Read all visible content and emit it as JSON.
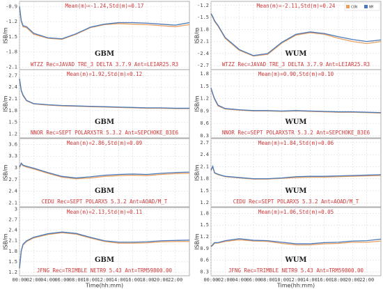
{
  "chart_data": [
    {
      "type": "line",
      "ylabel": "ISB/m",
      "annotation": "Mean(m)=-1.24,Std(m)=0.17",
      "station": "WTZZ Rec=JAVAD TRE_3 DELTA 3.7.9 Ant=LEIAR25.R3",
      "method": "GBM",
      "x": [
        0,
        0.25,
        0.5,
        1,
        2,
        4,
        6,
        8,
        10,
        12,
        14,
        16,
        18,
        20,
        22,
        24
      ],
      "xlim": [
        0,
        24
      ],
      "ylim": [
        -2.15,
        -0.8
      ],
      "yticks": [
        -2.1,
        -1.8,
        -1.5,
        -1.2,
        -0.9
      ],
      "series": [
        {
          "color": "#e8a060",
          "values": [
            -0.92,
            -1.2,
            -1.3,
            -1.32,
            -1.45,
            -1.53,
            -1.55,
            -1.45,
            -1.32,
            -1.26,
            -1.24,
            -1.25,
            -1.26,
            -1.28,
            -1.3,
            -1.26
          ]
        },
        {
          "color": "#4a78b8",
          "values": [
            -0.9,
            -1.18,
            -1.28,
            -1.3,
            -1.43,
            -1.52,
            -1.54,
            -1.44,
            -1.31,
            -1.25,
            -1.22,
            -1.22,
            -1.23,
            -1.25,
            -1.27,
            -1.22
          ]
        }
      ]
    },
    {
      "type": "line",
      "ylabel": "ISB/m",
      "annotation": "Mean(m)=-2.11,Std(m)=0.24",
      "station": "WTZZ Rec=JAVAD TRE_3 DELTA 3.7.9 Ant=LEIAR25.R3",
      "method": "WUM",
      "x": [
        0,
        0.25,
        0.5,
        1,
        2,
        4,
        6,
        8,
        10,
        12,
        14,
        16,
        18,
        20,
        22,
        24
      ],
      "xlim": [
        0,
        24
      ],
      "ylim": [
        -2.8,
        -1.1
      ],
      "yticks": [
        -2.7,
        -2.4,
        -2.1,
        -1.8,
        -1.5,
        -1.2
      ],
      "series": [
        {
          "name": "CON",
          "color": "#e8a060",
          "values": [
            -1.42,
            -1.5,
            -1.6,
            -1.72,
            -2.02,
            -2.32,
            -2.46,
            -2.42,
            -2.14,
            -1.94,
            -1.88,
            -1.92,
            -2.02,
            -2.1,
            -2.15,
            -2.1
          ]
        },
        {
          "name": "NM",
          "color": "#4a78b8",
          "values": [
            -1.4,
            -1.48,
            -1.58,
            -1.7,
            -2.0,
            -2.3,
            -2.45,
            -2.4,
            -2.12,
            -1.92,
            -1.86,
            -1.9,
            -1.98,
            -2.05,
            -2.1,
            -2.06
          ]
        }
      ]
    },
    {
      "type": "line",
      "ylabel": "ISB/m",
      "annotation": "Mean(m)=1.92,Std(m)=0.12",
      "station": "NNOR Rec=SEPT POLARX5TR 5.3.2 Ant=SEPCHOKE_B3E6",
      "method": "GBM",
      "x": [
        0,
        0.25,
        0.5,
        1,
        2,
        4,
        6,
        8,
        10,
        12,
        14,
        16,
        18,
        20,
        22,
        24
      ],
      "xlim": [
        0,
        24
      ],
      "ylim": [
        1.1,
        2.85
      ],
      "yticks": [
        1.2,
        1.5,
        1.8,
        2.1,
        2.4,
        2.7
      ],
      "series": [
        {
          "color": "#e8a060",
          "values": [
            2.6,
            2.3,
            2.18,
            2.05,
            1.97,
            1.94,
            1.92,
            1.91,
            1.9,
            1.89,
            1.88,
            1.87,
            1.86,
            1.86,
            1.85,
            1.85
          ]
        },
        {
          "color": "#4a78b8",
          "values": [
            2.62,
            2.32,
            2.2,
            2.06,
            1.98,
            1.95,
            1.93,
            1.92,
            1.91,
            1.9,
            1.89,
            1.88,
            1.87,
            1.87,
            1.86,
            1.86
          ]
        }
      ]
    },
    {
      "type": "line",
      "ylabel": "ISB/m",
      "annotation": "Mean(m)=0.90,Std(m)=0.10",
      "station": "NNOR Rec=SEPT POLARX5TR 5.3.2 Ant=SEPCHOKE_B3E6",
      "method": "WUM",
      "x": [
        0,
        0.25,
        0.5,
        1,
        2,
        4,
        6,
        8,
        10,
        12,
        14,
        16,
        18,
        20,
        22,
        24
      ],
      "xlim": [
        0,
        24
      ],
      "ylim": [
        0.25,
        1.9
      ],
      "yticks": [
        0.3,
        0.6,
        0.9,
        1.2,
        1.5,
        1.8
      ],
      "series": [
        {
          "color": "#e8a060",
          "values": [
            1.45,
            1.3,
            1.18,
            1.02,
            0.95,
            0.92,
            0.9,
            0.9,
            0.89,
            0.9,
            0.89,
            0.88,
            0.87,
            0.87,
            0.86,
            0.85
          ]
        },
        {
          "color": "#4a78b8",
          "values": [
            1.46,
            1.32,
            1.2,
            1.04,
            0.96,
            0.93,
            0.91,
            0.91,
            0.9,
            0.91,
            0.9,
            0.89,
            0.88,
            0.88,
            0.87,
            0.86
          ]
        }
      ]
    },
    {
      "type": "line",
      "ylabel": "ISB/m",
      "annotation": "Mean(m)=2.86,Std(m)=0.09",
      "station": "CEDU Rec=SEPT POLARX5 5.3.2 Ant=AOAD/M_T",
      "method": "GBM",
      "x": [
        0,
        0.25,
        0.5,
        1,
        2,
        4,
        6,
        8,
        10,
        12,
        14,
        16,
        18,
        20,
        22,
        24
      ],
      "xlim": [
        0,
        24
      ],
      "ylim": [
        2.0,
        3.75
      ],
      "yticks": [
        2.1,
        2.4,
        2.7,
        3.0,
        3.3,
        3.6
      ],
      "series": [
        {
          "color": "#e8a060",
          "values": [
            3.0,
            3.1,
            3.05,
            3.02,
            2.97,
            2.86,
            2.76,
            2.72,
            2.74,
            2.78,
            2.8,
            2.81,
            2.8,
            2.83,
            2.85,
            2.86
          ]
        },
        {
          "color": "#4a78b8",
          "values": [
            3.02,
            3.12,
            3.07,
            3.04,
            2.99,
            2.88,
            2.78,
            2.74,
            2.77,
            2.81,
            2.83,
            2.84,
            2.83,
            2.86,
            2.88,
            2.89
          ]
        }
      ]
    },
    {
      "type": "line",
      "ylabel": "ISB/m",
      "annotation": "Mean(m)=1.84,Std(m)=0.06",
      "station": "CEDU Rec=SEPT POLARX5 5.3.2 Ant=AOAD/M_T",
      "method": "WUM",
      "x": [
        0,
        0.25,
        0.5,
        1,
        2,
        4,
        6,
        8,
        10,
        12,
        14,
        16,
        18,
        20,
        22,
        24
      ],
      "xlim": [
        0,
        24
      ],
      "ylim": [
        1.1,
        2.8
      ],
      "yticks": [
        1.2,
        1.5,
        1.8,
        2.1,
        2.4,
        2.7
      ],
      "series": [
        {
          "color": "#e8a060",
          "values": [
            2.0,
            2.1,
            1.94,
            1.9,
            1.85,
            1.82,
            1.79,
            1.79,
            1.81,
            1.83,
            1.84,
            1.84,
            1.85,
            1.86,
            1.87,
            1.88
          ]
        },
        {
          "color": "#4a78b8",
          "values": [
            2.01,
            2.11,
            1.95,
            1.91,
            1.86,
            1.83,
            1.8,
            1.8,
            1.82,
            1.85,
            1.86,
            1.86,
            1.87,
            1.88,
            1.89,
            1.9
          ]
        }
      ]
    },
    {
      "type": "line",
      "ylabel": "ISB/m",
      "annotation": "Mean(m)=2.13,Std(m)=0.11",
      "station": "JFNG Rec=TRIMBLE NETR9 5.43 Ant=TRM59800.00",
      "method": "GBM",
      "x": [
        0,
        0.25,
        0.5,
        1,
        2,
        4,
        6,
        8,
        10,
        12,
        14,
        16,
        18,
        20,
        22,
        24
      ],
      "xlim": [
        0,
        24
      ],
      "ylim": [
        1.1,
        3.05
      ],
      "yticks": [
        1.2,
        1.5,
        1.8,
        2.1,
        2.4,
        2.7,
        3.0
      ],
      "xlabel": "Time(hh:mm)",
      "xticks": [
        {
          "value": 0,
          "label": "00:00"
        },
        {
          "value": 2,
          "label": "02:00"
        },
        {
          "value": 4,
          "label": "04:00"
        },
        {
          "value": 6,
          "label": "06:00"
        },
        {
          "value": 8,
          "label": "08:00"
        },
        {
          "value": 10,
          "label": "10:00"
        },
        {
          "value": 12,
          "label": "12:00"
        },
        {
          "value": 14,
          "label": "14:00"
        },
        {
          "value": 16,
          "label": "16:00"
        },
        {
          "value": 18,
          "label": "18:00"
        },
        {
          "value": 20,
          "label": "20:00"
        },
        {
          "value": 22,
          "label": "22:00"
        }
      ],
      "series": [
        {
          "color": "#e8a060",
          "values": [
            1.3,
            1.8,
            1.98,
            2.08,
            2.18,
            2.28,
            2.33,
            2.29,
            2.18,
            2.08,
            2.03,
            2.03,
            2.04,
            2.07,
            2.08,
            2.08
          ]
        },
        {
          "color": "#4a78b8",
          "values": [
            1.32,
            1.82,
            2.0,
            2.1,
            2.2,
            2.3,
            2.35,
            2.31,
            2.2,
            2.1,
            2.06,
            2.06,
            2.07,
            2.1,
            2.11,
            2.12
          ]
        }
      ]
    },
    {
      "type": "line",
      "ylabel": "ISB/m",
      "annotation": "Mean(m)=1.06,Std(m)=0.05",
      "station": "JFNG Rec=TRIMBLE NETR9 5.43 Ant=TRM59800.00",
      "method": "WUM",
      "x": [
        0,
        0.25,
        0.5,
        1,
        2,
        4,
        6,
        8,
        10,
        12,
        14,
        16,
        18,
        20,
        22,
        24
      ],
      "xlim": [
        0,
        24
      ],
      "ylim": [
        0.2,
        1.95
      ],
      "yticks": [
        0.3,
        0.6,
        0.9,
        1.2,
        1.5,
        1.8
      ],
      "xlabel": "Time(hh:mm)",
      "xticks": [
        {
          "value": 0,
          "label": "00:00"
        },
        {
          "value": 2,
          "label": "02:00"
        },
        {
          "value": 4,
          "label": "04:00"
        },
        {
          "value": 6,
          "label": "06:00"
        },
        {
          "value": 8,
          "label": "08:00"
        },
        {
          "value": 10,
          "label": "10:00"
        },
        {
          "value": 12,
          "label": "12:00"
        },
        {
          "value": 14,
          "label": "14:00"
        },
        {
          "value": 16,
          "label": "16:00"
        },
        {
          "value": 18,
          "label": "18:00"
        },
        {
          "value": 20,
          "label": "20:00"
        },
        {
          "value": 22,
          "label": "22:00"
        }
      ],
      "series": [
        {
          "color": "#e8a060",
          "values": [
            0.94,
            0.98,
            1.03,
            1.04,
            1.08,
            1.12,
            1.09,
            1.08,
            1.03,
            0.99,
            0.99,
            1.02,
            1.03,
            1.06,
            1.06,
            1.09
          ]
        },
        {
          "color": "#4a78b8",
          "values": [
            0.95,
            1.0,
            1.05,
            1.05,
            1.1,
            1.15,
            1.11,
            1.1,
            1.06,
            1.02,
            1.02,
            1.05,
            1.06,
            1.09,
            1.1,
            1.14
          ]
        }
      ]
    }
  ]
}
